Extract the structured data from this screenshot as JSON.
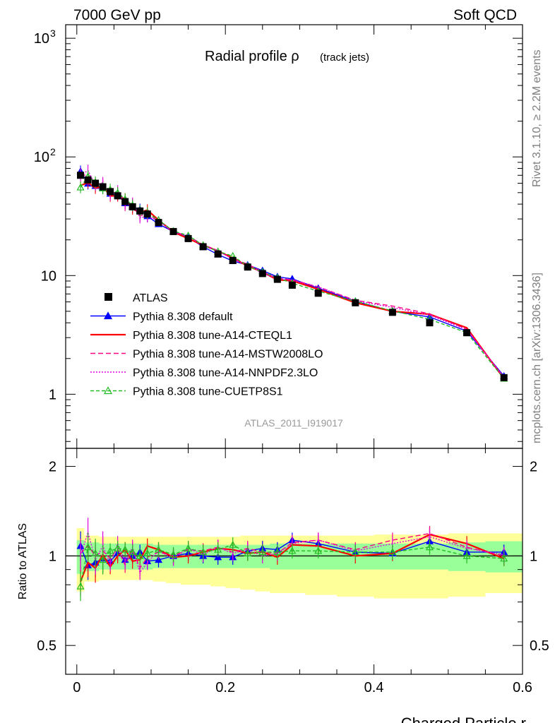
{
  "header": {
    "left": "7000 GeV pp",
    "right": "Soft QCD"
  },
  "side": {
    "rivet": "Rivet 3.1.10, ≥ 2.2M events",
    "mcplots": "mcplots.cern.ch [arXiv:1306.3436]"
  },
  "chart_data": {
    "type": "line",
    "title": "Radial profile ρ",
    "title_suffix": "(track jets)",
    "analysis_id": "ATLAS_2011_I919017",
    "xlabel": "Charged Particle r",
    "ylabel_ratio": "Ratio to ATLAS",
    "xlim": [
      -0.015,
      0.6
    ],
    "ylim_main": [
      0.35,
      1300
    ],
    "ylim_ratio": [
      0.4,
      2.3
    ],
    "yscale_main": "log",
    "yscale_ratio": "log",
    "x_ticks": [
      "0",
      "0.2",
      "0.4",
      "0.6"
    ],
    "main_y_ticks": [
      "1",
      "10"
    ],
    "main_y_ticks_pow": [
      {
        "base": "10",
        "exp": "2"
      },
      {
        "base": "10",
        "exp": "3"
      }
    ],
    "ratio_y_ticks": [
      "0.5",
      "1",
      "2"
    ],
    "legend_position": "middle-left",
    "x": [
      0.005,
      0.015,
      0.025,
      0.035,
      0.045,
      0.055,
      0.065,
      0.075,
      0.085,
      0.095,
      0.11,
      0.13,
      0.15,
      0.17,
      0.19,
      0.21,
      0.23,
      0.25,
      0.27,
      0.29,
      0.325,
      0.375,
      0.425,
      0.475,
      0.525,
      0.575
    ],
    "band_inner": [
      [
        0.87,
        1.13
      ],
      [
        0.89,
        1.11
      ],
      [
        0.89,
        1.11
      ],
      [
        0.9,
        1.1
      ],
      [
        0.9,
        1.1
      ],
      [
        0.9,
        1.1
      ],
      [
        0.9,
        1.1
      ],
      [
        0.9,
        1.1
      ],
      [
        0.9,
        1.1
      ],
      [
        0.9,
        1.1
      ],
      [
        0.91,
        1.09
      ],
      [
        0.91,
        1.09
      ],
      [
        0.91,
        1.09
      ],
      [
        0.91,
        1.09
      ],
      [
        0.91,
        1.09
      ],
      [
        0.91,
        1.09
      ],
      [
        0.91,
        1.09
      ],
      [
        0.91,
        1.09
      ],
      [
        0.9,
        1.1
      ],
      [
        0.9,
        1.1
      ],
      [
        0.9,
        1.1
      ],
      [
        0.9,
        1.1
      ],
      [
        0.9,
        1.1
      ],
      [
        0.9,
        1.1
      ],
      [
        0.89,
        1.11
      ],
      [
        0.88,
        1.12
      ]
    ],
    "band_outer": [
      [
        0.76,
        1.24
      ],
      [
        0.82,
        1.17
      ],
      [
        0.82,
        1.17
      ],
      [
        0.83,
        1.16
      ],
      [
        0.83,
        1.16
      ],
      [
        0.83,
        1.16
      ],
      [
        0.83,
        1.16
      ],
      [
        0.83,
        1.16
      ],
      [
        0.83,
        1.16
      ],
      [
        0.83,
        1.16
      ],
      [
        0.82,
        1.16
      ],
      [
        0.81,
        1.16
      ],
      [
        0.8,
        1.16
      ],
      [
        0.8,
        1.16
      ],
      [
        0.79,
        1.16
      ],
      [
        0.78,
        1.16
      ],
      [
        0.77,
        1.17
      ],
      [
        0.76,
        1.17
      ],
      [
        0.75,
        1.17
      ],
      [
        0.75,
        1.17
      ],
      [
        0.74,
        1.17
      ],
      [
        0.73,
        1.17
      ],
      [
        0.72,
        1.18
      ],
      [
        0.72,
        1.18
      ],
      [
        0.73,
        1.19
      ],
      [
        0.75,
        1.19
      ]
    ],
    "data": {
      "name": "ATLAS",
      "y": [
        70,
        64,
        60,
        56,
        51,
        47,
        42,
        38,
        35,
        33,
        28,
        23.5,
        20.5,
        17.5,
        15.2,
        13.4,
        11.8,
        10.4,
        9.3,
        8.3,
        7.1,
        5.9,
        4.9,
        4.0,
        3.3,
        1.38
      ]
    },
    "series": [
      {
        "name": "Pythia 8.308 default",
        "color": "#0000ff",
        "dash": "",
        "marker": "triangle-filled",
        "ratio": [
          1.08,
          0.93,
          0.95,
          0.98,
          0.96,
          1.02,
          0.97,
          1.0,
          1.03,
          0.96,
          0.97,
          1.0,
          1.02,
          1.0,
          0.99,
          0.99,
          1.04,
          1.06,
          1.05,
          1.13,
          1.1,
          1.03,
          1.02,
          1.12,
          1.03,
          1.03
        ]
      },
      {
        "name": "Pythia 8.308 tune-A14-CTEQL1",
        "color": "#ff0000",
        "dash": "",
        "marker": "none",
        "ratio": [
          0.82,
          0.95,
          0.91,
          1.01,
          0.92,
          1.0,
          1.05,
          0.96,
          0.97,
          1.08,
          1.05,
          0.99,
          1.0,
          1.03,
          1.06,
          1.05,
          1.02,
          1.03,
          0.99,
          1.09,
          1.08,
          1.0,
          1.02,
          1.18,
          1.1,
          0.98
        ]
      },
      {
        "name": "Pythia 8.308 tune-A14-MSTW2008LO",
        "color": "#ff007f",
        "dash": "7,4",
        "marker": "none",
        "ratio": [
          1.02,
          1.08,
          1.0,
          1.04,
          0.98,
          1.06,
          0.93,
          1.05,
          0.91,
          0.99,
          1.03,
          1.0,
          1.05,
          1.04,
          1.07,
          1.03,
          1.06,
          1.03,
          1.02,
          1.11,
          1.13,
          1.05,
          1.13,
          1.19,
          1.07,
          1.0
        ]
      },
      {
        "name": "Pythia 8.308 tune-A14-NNPDF2.3LO",
        "color": "#e000e0",
        "dash": "2,2",
        "marker": "none",
        "ratio": [
          1.0,
          1.2,
          0.97,
          1.08,
          0.94,
          1.1,
          0.96,
          1.07,
          0.88,
          0.95,
          1.04,
          0.98,
          1.06,
          1.01,
          1.07,
          1.02,
          1.05,
          1.0,
          1.02,
          1.1,
          1.13,
          1.04,
          1.1,
          1.16,
          1.06,
          1.01
        ]
      },
      {
        "name": "Pythia 8.308 tune-CUETP8S1",
        "color": "#22bb22",
        "dash": "5,3",
        "marker": "triangle-open",
        "ratio": [
          0.79,
          1.07,
          1.02,
          0.97,
          1.04,
          1.06,
          1.05,
          1.03,
          1.0,
          1.02,
          1.05,
          1.01,
          1.06,
          1.03,
          1.05,
          1.09,
          1.02,
          1.03,
          1.03,
          1.04,
          1.04,
          1.03,
          1.03,
          1.07,
          1.0,
          0.98
        ]
      }
    ]
  }
}
